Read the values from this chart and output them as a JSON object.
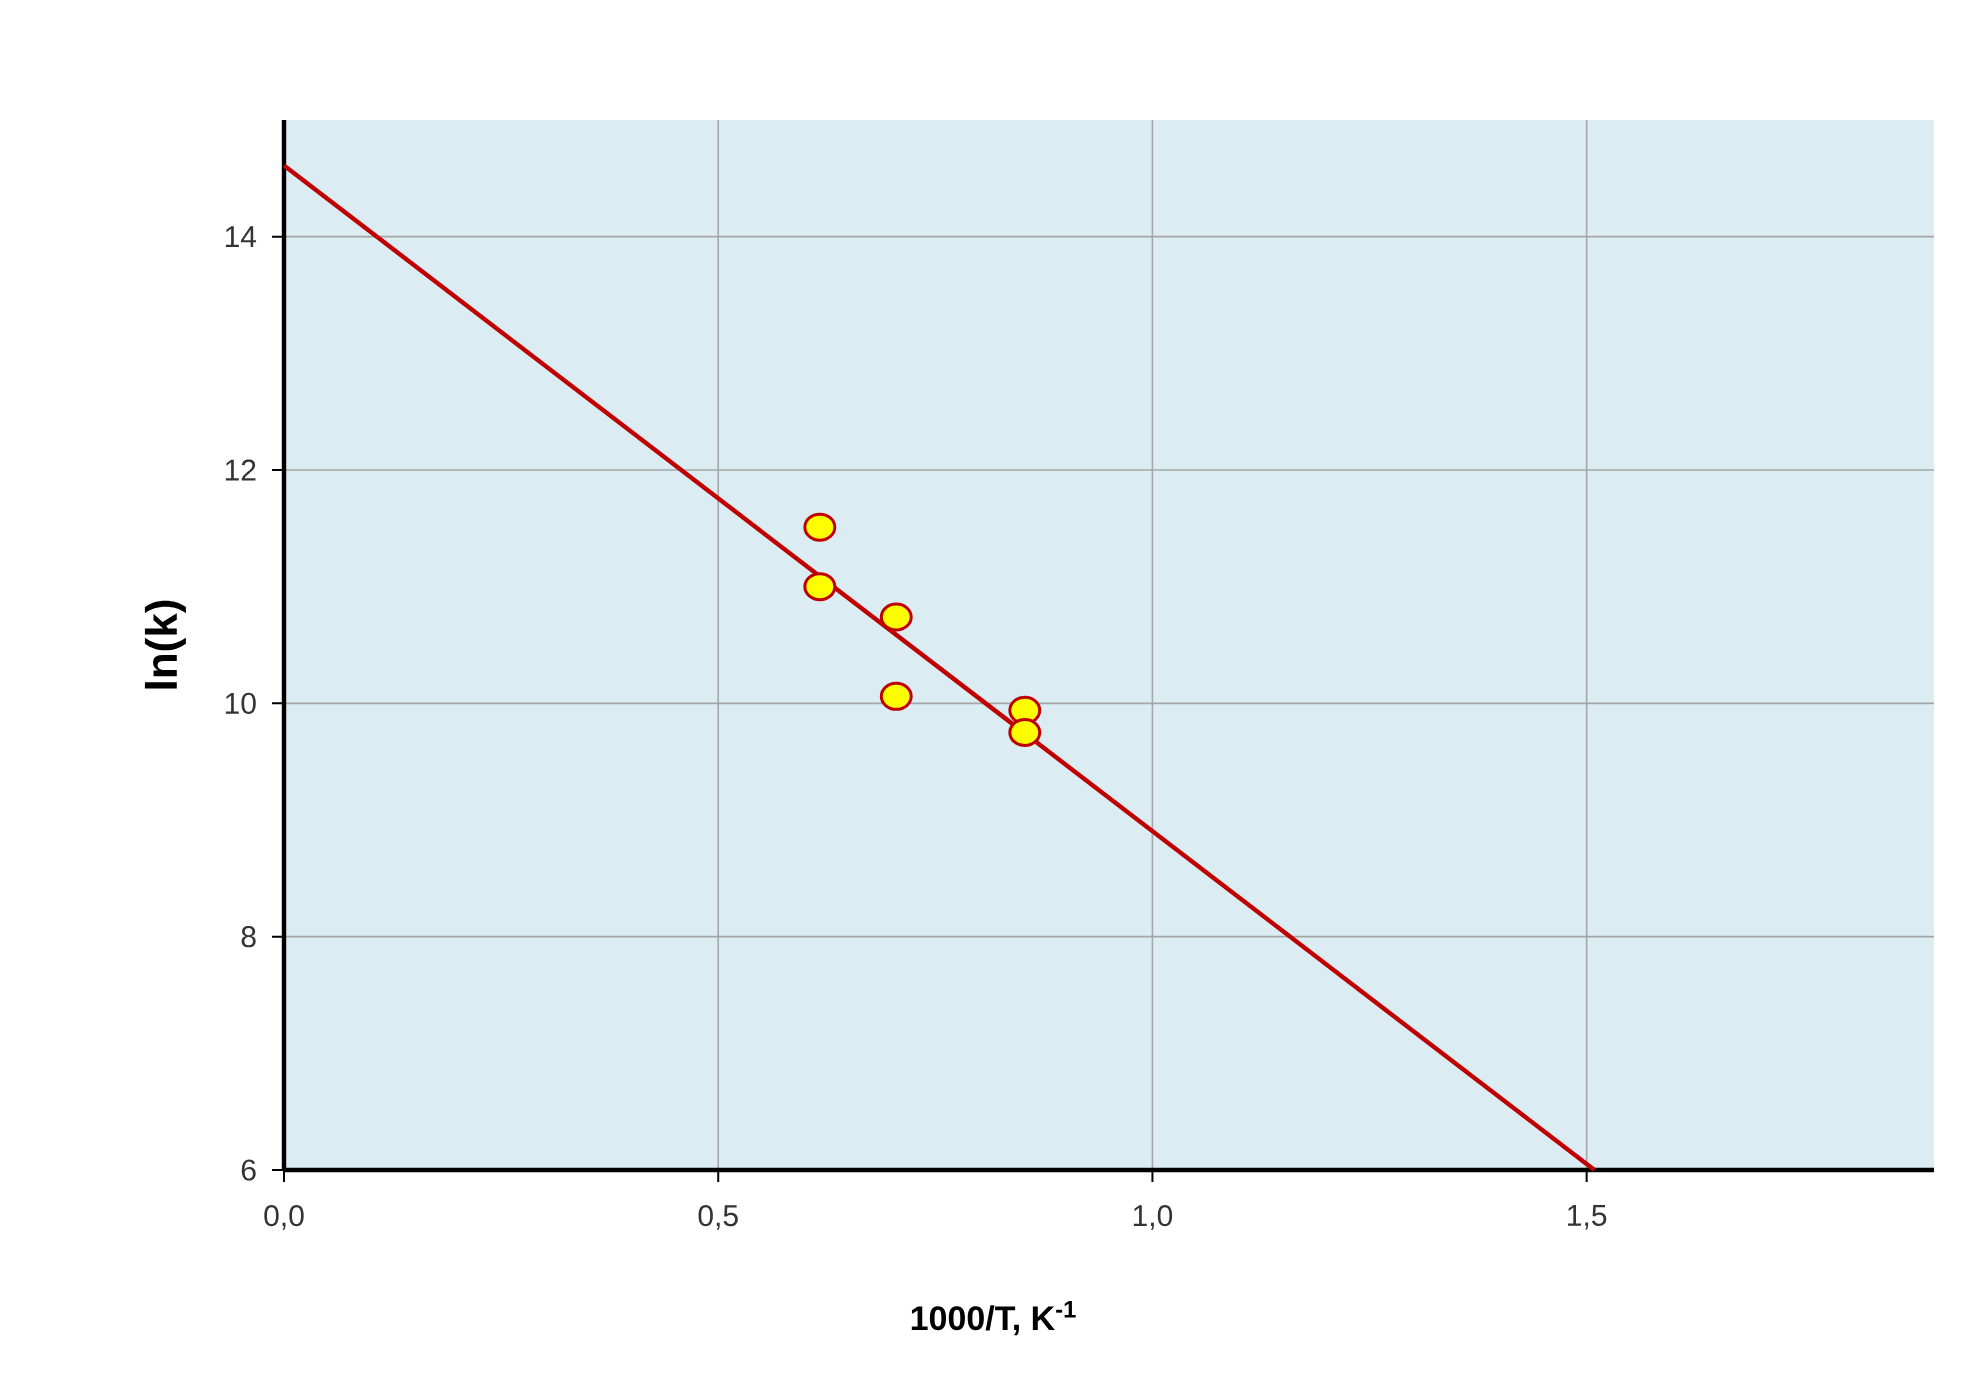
{
  "chart_data": {
    "type": "scatter",
    "xlabel": "**1000/T, K$^{-1}$**",
    "ylabel": "**ln(k)**",
    "xlim": [
      0,
      1.9
    ],
    "ylim": [
      6,
      15
    ],
    "xticks": [
      {
        "value": 0,
        "label": "0,0"
      },
      {
        "value": 0.5,
        "label": "0,5"
      },
      {
        "value": 1,
        "label": "1,0"
      },
      {
        "value": 1.5,
        "label": "1,5"
      }
    ],
    "yticks": [
      6,
      8,
      10,
      12,
      14
    ],
    "grid": true,
    "series": [
      {
        "marker": "circle",
        "color": "#ffff00",
        "x": [
          0.617,
          0.617,
          0.705,
          0.705,
          0.853,
          0.853
        ],
        "values": [
          11.51,
          11.0,
          10.74,
          10.06,
          9.94,
          9.75
        ]
      },
      {
        "type": "line",
        "marker": "none",
        "color": "#c00000",
        "x": [
          0,
          1.509
        ],
        "values": [
          14.61,
          6
        ]
      }
    ]
  }
}
